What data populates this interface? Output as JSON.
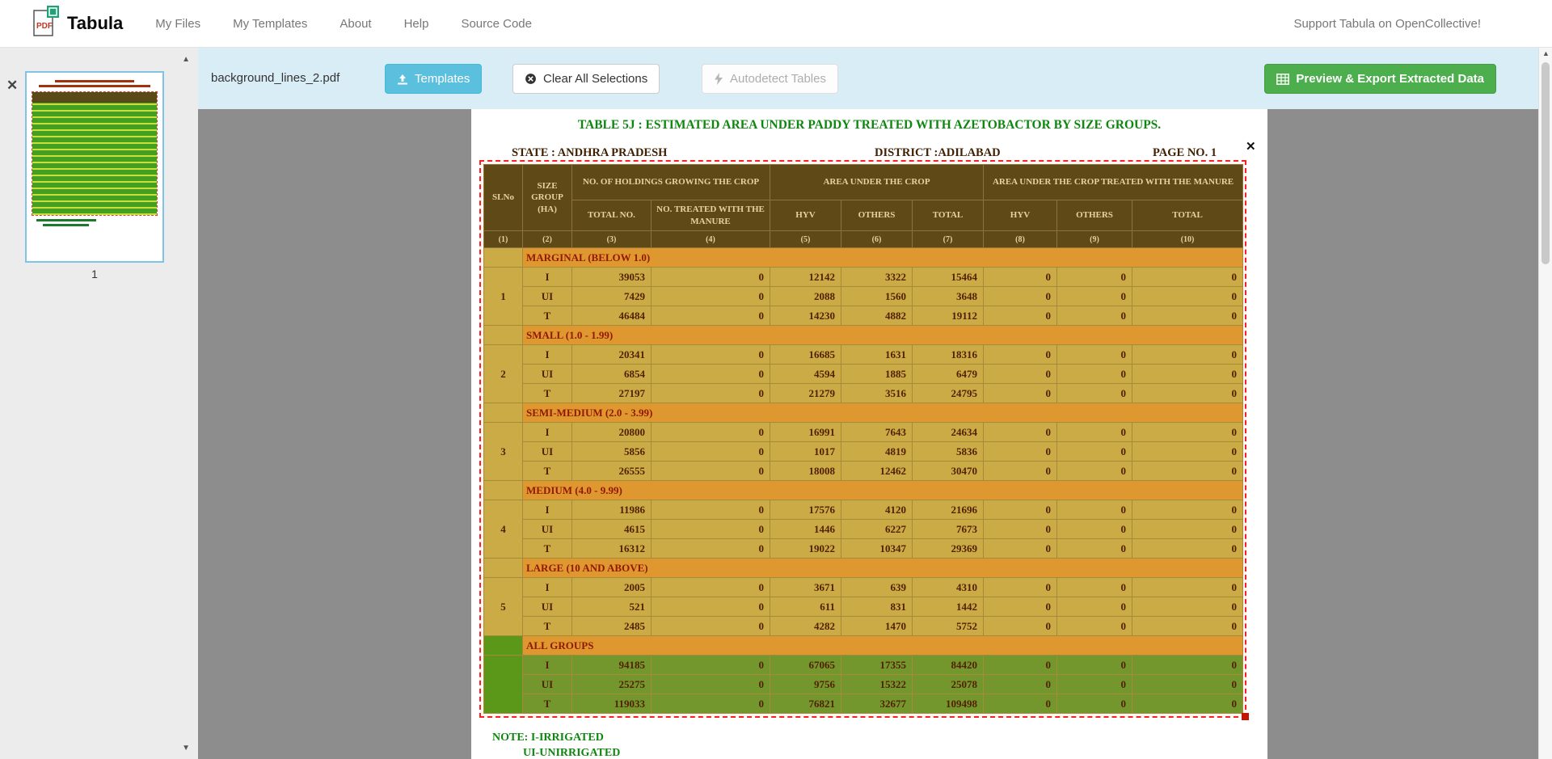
{
  "navbar": {
    "brand": "Tabula",
    "items": [
      "My Files",
      "My Templates",
      "About",
      "Help",
      "Source Code"
    ],
    "support": "Support Tabula on OpenCollective!"
  },
  "toolbar": {
    "filename": "background_lines_2.pdf",
    "templates": "Templates",
    "clear": "Clear All Selections",
    "autodetect": "Autodetect Tables",
    "export": "Preview & Export Extracted Data"
  },
  "sidebar": {
    "page_label": "1"
  },
  "colors": {
    "toolbar_bg": "#d9edf7",
    "templates_btn": "#5bc0de",
    "export_btn": "#4cae4c",
    "selection_border": "#fb2020",
    "table_header_bg": "#574a15",
    "table_body_bg": "#c8b046",
    "group_row_bg": "#de9b2f",
    "all_groups_bg": "#6d9b2c",
    "title_green": "#0e870e"
  },
  "doc": {
    "title": "TABLE 5J : ESTIMATED AREA UNDER PADDY TREATED WITH AZETOBACTOR BY SIZE GROUPS.",
    "state_label": "STATE :",
    "state_value": "ANDHRA PRADESH",
    "district_label": "DISTRICT :",
    "district_value": "ADILABAD",
    "page_no": "PAGE NO. 1",
    "note1": "NOTE: I-IRRIGATED",
    "note2": "UI-UNIRRIGATED",
    "table": {
      "col_headers": {
        "slno": "SLNo",
        "size_group": "SIZE GROUP",
        "size_group_unit": "(HA)",
        "holdings": "NO. OF HOLDINGS GROWING THE CROP",
        "area": "AREA UNDER THE CROP",
        "area_treated": "AREA UNDER THE CROP TREATED WITH THE MANURE",
        "sub": [
          "TOTAL NO.",
          "NO. TREATED WITH THE MANURE",
          "HYV",
          "OTHERS",
          "TOTAL",
          "HYV",
          "OTHERS",
          "TOTAL"
        ],
        "col_numbers": [
          "(1)",
          "(2)",
          "(3)",
          "(4)",
          "(5)",
          "(6)",
          "(7)",
          "(8)",
          "(9)",
          "(10)"
        ]
      },
      "groups": [
        {
          "sl": "1",
          "label": "MARGINAL (BELOW 1.0)",
          "green": false,
          "rows": [
            {
              "type": "I",
              "values": [
                "39053",
                "0",
                "12142",
                "3322",
                "15464",
                "0",
                "0",
                "0"
              ]
            },
            {
              "type": "UI",
              "values": [
                "7429",
                "0",
                "2088",
                "1560",
                "3648",
                "0",
                "0",
                "0"
              ]
            },
            {
              "type": "T",
              "values": [
                "46484",
                "0",
                "14230",
                "4882",
                "19112",
                "0",
                "0",
                "0"
              ]
            }
          ]
        },
        {
          "sl": "2",
          "label": "SMALL (1.0 - 1.99)",
          "green": false,
          "rows": [
            {
              "type": "I",
              "values": [
                "20341",
                "0",
                "16685",
                "1631",
                "18316",
                "0",
                "0",
                "0"
              ]
            },
            {
              "type": "UI",
              "values": [
                "6854",
                "0",
                "4594",
                "1885",
                "6479",
                "0",
                "0",
                "0"
              ]
            },
            {
              "type": "T",
              "values": [
                "27197",
                "0",
                "21279",
                "3516",
                "24795",
                "0",
                "0",
                "0"
              ]
            }
          ]
        },
        {
          "sl": "3",
          "label": "SEMI-MEDIUM (2.0 - 3.99)",
          "green": false,
          "rows": [
            {
              "type": "I",
              "values": [
                "20800",
                "0",
                "16991",
                "7643",
                "24634",
                "0",
                "0",
                "0"
              ]
            },
            {
              "type": "UI",
              "values": [
                "5856",
                "0",
                "1017",
                "4819",
                "5836",
                "0",
                "0",
                "0"
              ]
            },
            {
              "type": "T",
              "values": [
                "26555",
                "0",
                "18008",
                "12462",
                "30470",
                "0",
                "0",
                "0"
              ]
            }
          ]
        },
        {
          "sl": "4",
          "label": "MEDIUM (4.0 - 9.99)",
          "green": false,
          "rows": [
            {
              "type": "I",
              "values": [
                "11986",
                "0",
                "17576",
                "4120",
                "21696",
                "0",
                "0",
                "0"
              ]
            },
            {
              "type": "UI",
              "values": [
                "4615",
                "0",
                "1446",
                "6227",
                "7673",
                "0",
                "0",
                "0"
              ]
            },
            {
              "type": "T",
              "values": [
                "16312",
                "0",
                "19022",
                "10347",
                "29369",
                "0",
                "0",
                "0"
              ]
            }
          ]
        },
        {
          "sl": "5",
          "label": "LARGE (10 AND ABOVE)",
          "green": false,
          "rows": [
            {
              "type": "I",
              "values": [
                "2005",
                "0",
                "3671",
                "639",
                "4310",
                "0",
                "0",
                "0"
              ]
            },
            {
              "type": "UI",
              "values": [
                "521",
                "0",
                "611",
                "831",
                "1442",
                "0",
                "0",
                "0"
              ]
            },
            {
              "type": "T",
              "values": [
                "2485",
                "0",
                "4282",
                "1470",
                "5752",
                "0",
                "0",
                "0"
              ]
            }
          ]
        },
        {
          "sl": "",
          "label": "ALL GROUPS",
          "green": true,
          "rows": [
            {
              "type": "I",
              "values": [
                "94185",
                "0",
                "67065",
                "17355",
                "84420",
                "0",
                "0",
                "0"
              ]
            },
            {
              "type": "UI",
              "values": [
                "25275",
                "0",
                "9756",
                "15322",
                "25078",
                "0",
                "0",
                "0"
              ]
            },
            {
              "type": "T",
              "values": [
                "119033",
                "0",
                "76821",
                "32677",
                "109498",
                "0",
                "0",
                "0"
              ]
            }
          ]
        }
      ]
    }
  }
}
